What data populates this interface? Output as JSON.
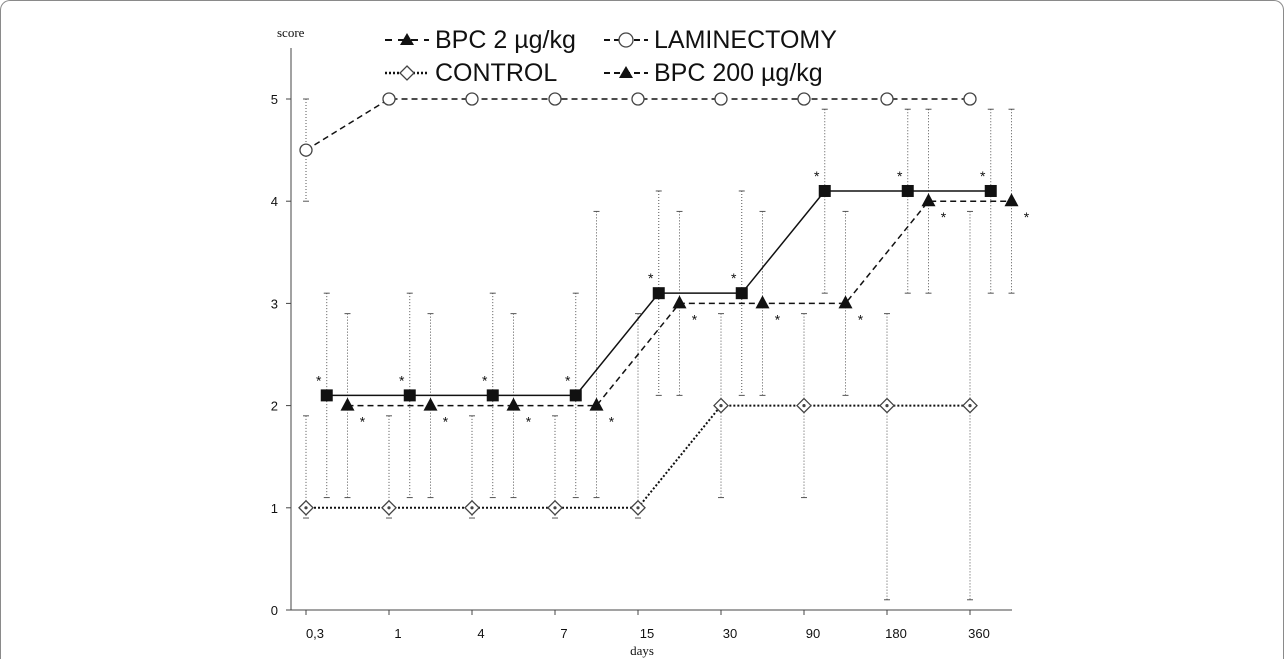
{
  "chart_data": {
    "type": "line",
    "xlabel": "days",
    "ylabel": "score",
    "categories": [
      "0,3",
      "1",
      "4",
      "7",
      "15",
      "30",
      "90",
      "180",
      "360"
    ],
    "ylim": [
      0,
      5
    ],
    "yticks": [
      "0",
      "1",
      "2",
      "3",
      "4",
      "5"
    ],
    "legend": [
      {
        "label": "BPC 2 µg/kg",
        "series": "bpc2"
      },
      {
        "label": "LAMINECTOMY",
        "series": "laminectomy"
      },
      {
        "label": "CONTROL",
        "series": "control"
      },
      {
        "label": "BPC 200 µg/kg",
        "series": "bpc200"
      }
    ],
    "series": [
      {
        "id": "laminectomy",
        "name": "LAMINECTOMY",
        "marker": "circle-open",
        "line": "dashed",
        "x_offset": 0,
        "values": [
          4.5,
          5,
          5,
          5,
          5,
          5,
          5,
          5,
          5
        ],
        "err_low": [
          4.0,
          null,
          null,
          null,
          null,
          null,
          null,
          null,
          null
        ],
        "err_high": [
          5.0,
          null,
          null,
          null,
          null,
          null,
          null,
          null,
          null
        ],
        "star": [
          false,
          false,
          false,
          false,
          false,
          false,
          false,
          false,
          false
        ]
      },
      {
        "id": "control",
        "name": "CONTROL",
        "marker": "diamond-open",
        "line": "dotted",
        "x_offset": 0,
        "values": [
          1,
          1,
          1,
          1,
          1,
          2,
          2,
          2,
          2
        ],
        "err_low": [
          0.9,
          0.9,
          0.9,
          0.9,
          0.9,
          1.1,
          1.1,
          0.1,
          0.1
        ],
        "err_high": [
          1.9,
          1.9,
          1.9,
          1.9,
          2.9,
          2.9,
          2.9,
          2.9,
          3.9
        ],
        "star": [
          false,
          false,
          false,
          false,
          false,
          false,
          false,
          false,
          false
        ]
      },
      {
        "id": "bpc2",
        "name": "BPC 2 µg/kg",
        "marker": "square-filled",
        "line": "solid",
        "x_offset": 0.25,
        "values": [
          2.1,
          2.1,
          2.1,
          2.1,
          3.1,
          3.1,
          4.1,
          4.1,
          4.1
        ],
        "err_low": [
          1.1,
          1.1,
          1.1,
          1.1,
          2.1,
          2.1,
          3.1,
          3.1,
          3.1
        ],
        "err_high": [
          3.1,
          3.1,
          3.1,
          3.1,
          4.1,
          4.1,
          4.9,
          4.9,
          4.9
        ],
        "star": [
          true,
          true,
          true,
          true,
          true,
          true,
          true,
          true,
          true
        ]
      },
      {
        "id": "bpc200",
        "name": "BPC 200 µg/kg",
        "marker": "triangle-filled",
        "line": "dashed",
        "x_offset": 0.5,
        "values": [
          2,
          2,
          2,
          2,
          3,
          3,
          3,
          4,
          4
        ],
        "err_low": [
          1.1,
          1.1,
          1.1,
          1.1,
          2.1,
          2.1,
          2.1,
          3.1,
          3.1
        ],
        "err_high": [
          2.9,
          2.9,
          2.9,
          3.9,
          3.9,
          3.9,
          3.9,
          4.9,
          4.9
        ],
        "star": [
          true,
          true,
          true,
          true,
          true,
          true,
          true,
          true,
          true
        ]
      }
    ],
    "star_label": "*",
    "grid": false
  }
}
